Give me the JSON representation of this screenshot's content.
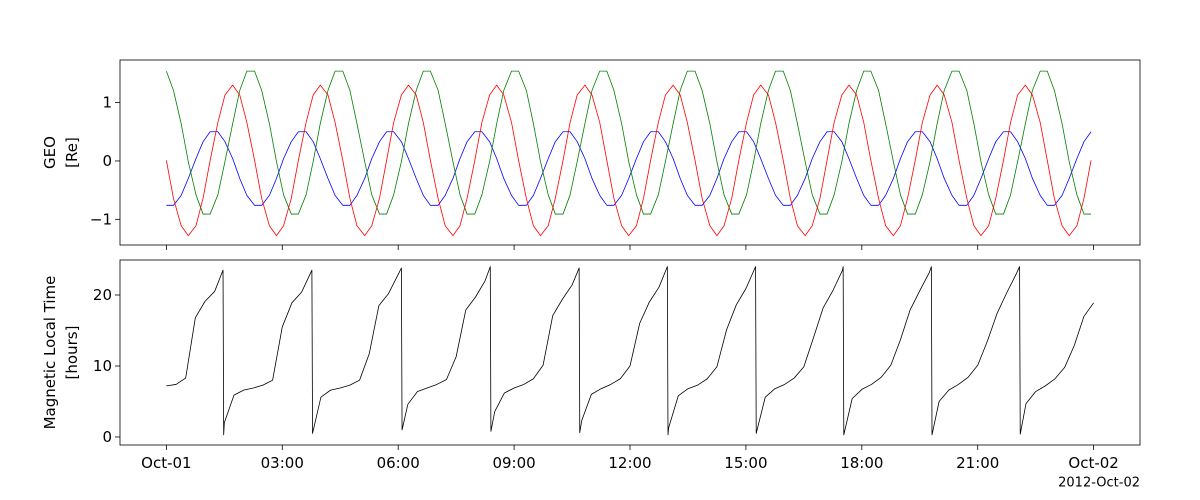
{
  "chart_data": [
    {
      "type": "line",
      "ylabel": [
        "GEO",
        "[Re]"
      ],
      "x": [
        "2012-10-01T00:00",
        "2012-10-01T00:11",
        "2012-10-01T00:23",
        "2012-10-01T00:34",
        "2012-10-01T00:46",
        "2012-10-01T00:57",
        "2012-10-01T01:08",
        "2012-10-01T01:20",
        "2012-10-01T01:31",
        "2012-10-01T01:43",
        "2012-10-01T01:54",
        "2012-10-01T02:05",
        "2012-10-01T02:17",
        "2012-10-01T02:28",
        "2012-10-01T02:40",
        "2012-10-01T02:51",
        "2012-10-01T03:02",
        "2012-10-01T03:14",
        "2012-10-01T03:25",
        "2012-10-01T03:37",
        "2012-10-01T03:48",
        "2012-10-01T03:59",
        "2012-10-01T04:11",
        "2012-10-01T04:22",
        "2012-10-01T04:34",
        "2012-10-01T04:45",
        "2012-10-01T04:56",
        "2012-10-01T05:08",
        "2012-10-01T05:19",
        "2012-10-01T05:31",
        "2012-10-01T05:42",
        "2012-10-01T05:53",
        "2012-10-01T06:05",
        "2012-10-01T06:16",
        "2012-10-01T06:28",
        "2012-10-01T06:39",
        "2012-10-01T06:50",
        "2012-10-01T07:02",
        "2012-10-01T07:13",
        "2012-10-01T07:25",
        "2012-10-01T07:36",
        "2012-10-01T07:47",
        "2012-10-01T07:59",
        "2012-10-01T08:10",
        "2012-10-01T08:22",
        "2012-10-01T08:33",
        "2012-10-01T08:44",
        "2012-10-01T08:56",
        "2012-10-01T09:07",
        "2012-10-01T09:19",
        "2012-10-01T09:30",
        "2012-10-01T09:41",
        "2012-10-01T09:53",
        "2012-10-01T10:04",
        "2012-10-01T10:16",
        "2012-10-01T10:27",
        "2012-10-01T10:38",
        "2012-10-01T10:50",
        "2012-10-01T11:01",
        "2012-10-01T11:13",
        "2012-10-01T11:24",
        "2012-10-01T11:35",
        "2012-10-01T11:47",
        "2012-10-01T11:58",
        "2012-10-01T12:10",
        "2012-10-01T12:21",
        "2012-10-01T12:32",
        "2012-10-01T12:44",
        "2012-10-01T12:55",
        "2012-10-01T13:07",
        "2012-10-01T13:18",
        "2012-10-01T13:29",
        "2012-10-01T13:41",
        "2012-10-01T13:52",
        "2012-10-01T14:04",
        "2012-10-01T14:15",
        "2012-10-01T14:26",
        "2012-10-01T14:38",
        "2012-10-01T14:49",
        "2012-10-01T15:01",
        "2012-10-01T15:12",
        "2012-10-01T15:23",
        "2012-10-01T15:35",
        "2012-10-01T15:46",
        "2012-10-01T15:58",
        "2012-10-01T16:09",
        "2012-10-01T16:20",
        "2012-10-01T16:32",
        "2012-10-01T16:43",
        "2012-10-01T16:55",
        "2012-10-01T17:06",
        "2012-10-01T17:17",
        "2012-10-01T17:29",
        "2012-10-01T17:40",
        "2012-10-01T17:52",
        "2012-10-01T18:03",
        "2012-10-01T18:14",
        "2012-10-01T18:26",
        "2012-10-01T18:37",
        "2012-10-01T18:49",
        "2012-10-01T19:00",
        "2012-10-01T19:11",
        "2012-10-01T19:23",
        "2012-10-01T19:34",
        "2012-10-01T19:46",
        "2012-10-01T19:57",
        "2012-10-01T20:08",
        "2012-10-01T20:20",
        "2012-10-01T20:31",
        "2012-10-01T20:43",
        "2012-10-01T20:54",
        "2012-10-01T21:05",
        "2012-10-01T21:17",
        "2012-10-01T21:28",
        "2012-10-01T21:40",
        "2012-10-01T21:51",
        "2012-10-01T22:02",
        "2012-10-01T22:14",
        "2012-10-01T22:25",
        "2012-10-01T22:37",
        "2012-10-01T22:48",
        "2012-10-01T22:59",
        "2012-10-01T23:11",
        "2012-10-01T23:22",
        "2012-10-01T23:34",
        "2012-10-01T23:45",
        "2012-10-01T23:56"
      ],
      "series": [
        {
          "color": "#0000ff",
          "values": [
            -0.76,
            -0.76,
            -0.59,
            -0.3,
            0.04,
            0.33,
            0.5,
            0.5,
            0.33,
            0.04,
            -0.3,
            -0.59,
            -0.76,
            -0.76,
            -0.59,
            -0.3,
            0.04,
            0.33,
            0.5,
            0.5,
            0.33,
            0.04,
            -0.3,
            -0.59,
            -0.76,
            -0.76,
            -0.59,
            -0.3,
            0.04,
            0.33,
            0.5,
            0.5,
            0.33,
            0.04,
            -0.3,
            -0.59,
            -0.76,
            -0.76,
            -0.59,
            -0.3,
            0.04,
            0.33,
            0.5,
            0.5,
            0.33,
            0.04,
            -0.3,
            -0.59,
            -0.76,
            -0.76,
            -0.59,
            -0.3,
            0.04,
            0.33,
            0.5,
            0.5,
            0.33,
            0.04,
            -0.3,
            -0.59,
            -0.76,
            -0.76,
            -0.59,
            -0.3,
            0.04,
            0.33,
            0.5,
            0.5,
            0.33,
            0.04,
            -0.3,
            -0.59,
            -0.76,
            -0.76,
            -0.59,
            -0.3,
            0.04,
            0.33,
            0.5,
            0.5,
            0.33,
            0.04,
            -0.3,
            -0.59,
            -0.76,
            -0.76,
            -0.59,
            -0.3,
            0.04,
            0.33,
            0.5,
            0.5,
            0.33,
            0.04,
            -0.3,
            -0.59,
            -0.76,
            -0.76,
            -0.59,
            -0.3,
            0.04,
            0.33,
            0.5,
            0.5,
            0.33,
            0.04,
            -0.3,
            -0.59,
            -0.76,
            -0.76,
            -0.59,
            -0.3,
            0.04,
            0.33,
            0.5,
            0.5,
            0.33,
            0.04,
            -0.3,
            -0.59,
            -0.76,
            -0.76,
            -0.59,
            -0.3,
            0.04,
            0.33,
            0.5
          ]
        },
        {
          "color": "#008000",
          "values": [
            1.54,
            1.21,
            0.64,
            -0.01,
            -0.58,
            -0.91,
            -0.91,
            -0.58,
            -0.01,
            0.64,
            1.21,
            1.54,
            1.54,
            1.21,
            0.64,
            -0.01,
            -0.58,
            -0.91,
            -0.91,
            -0.58,
            -0.01,
            0.64,
            1.21,
            1.54,
            1.54,
            1.21,
            0.64,
            -0.01,
            -0.58,
            -0.91,
            -0.91,
            -0.58,
            -0.01,
            0.64,
            1.21,
            1.54,
            1.54,
            1.21,
            0.64,
            -0.01,
            -0.58,
            -0.91,
            -0.91,
            -0.58,
            -0.01,
            0.64,
            1.21,
            1.54,
            1.54,
            1.21,
            0.64,
            -0.01,
            -0.58,
            -0.91,
            -0.91,
            -0.58,
            -0.01,
            0.64,
            1.21,
            1.54,
            1.54,
            1.21,
            0.64,
            -0.01,
            -0.58,
            -0.91,
            -0.91,
            -0.58,
            -0.01,
            0.64,
            1.21,
            1.54,
            1.54,
            1.21,
            0.64,
            -0.01,
            -0.58,
            -0.91,
            -0.91,
            -0.58,
            -0.01,
            0.64,
            1.21,
            1.54,
            1.54,
            1.21,
            0.64,
            -0.01,
            -0.58,
            -0.91,
            -0.91,
            -0.58,
            -0.01,
            0.64,
            1.21,
            1.54,
            1.54,
            1.21,
            0.64,
            -0.01,
            -0.58,
            -0.91,
            -0.91,
            -0.58,
            -0.01,
            0.64,
            1.21,
            1.54,
            1.54,
            1.21,
            0.64,
            -0.01,
            -0.58,
            -0.91,
            -0.91,
            -0.58,
            -0.01,
            0.64,
            1.21,
            1.54,
            1.54,
            1.21,
            0.64,
            -0.01,
            -0.58,
            -0.91,
            -0.91
          ]
        },
        {
          "color": "#ff0000",
          "values": [
            0.01,
            -0.64,
            -1.11,
            -1.28,
            -1.11,
            -0.64,
            0.01,
            0.66,
            1.13,
            1.3,
            1.13,
            0.66,
            0.01,
            -0.64,
            -1.11,
            -1.28,
            -1.11,
            -0.64,
            0.01,
            0.66,
            1.13,
            1.3,
            1.13,
            0.66,
            0.01,
            -0.64,
            -1.11,
            -1.28,
            -1.11,
            -0.64,
            0.01,
            0.66,
            1.13,
            1.3,
            1.13,
            0.66,
            0.01,
            -0.64,
            -1.11,
            -1.28,
            -1.11,
            -0.64,
            0.01,
            0.66,
            1.13,
            1.3,
            1.13,
            0.66,
            0.01,
            -0.64,
            -1.11,
            -1.28,
            -1.11,
            -0.64,
            0.01,
            0.66,
            1.13,
            1.3,
            1.13,
            0.66,
            0.01,
            -0.64,
            -1.11,
            -1.28,
            -1.11,
            -0.64,
            0.01,
            0.66,
            1.13,
            1.3,
            1.13,
            0.66,
            0.01,
            -0.64,
            -1.11,
            -1.28,
            -1.11,
            -0.64,
            0.01,
            0.66,
            1.13,
            1.3,
            1.13,
            0.66,
            0.01,
            -0.64,
            -1.11,
            -1.28,
            -1.11,
            -0.64,
            0.01,
            0.66,
            1.13,
            1.3,
            1.13,
            0.66,
            0.01,
            -0.64,
            -1.11,
            -1.28,
            -1.11,
            -0.64,
            0.01,
            0.66,
            1.13,
            1.3,
            1.13,
            0.66,
            0.01,
            -0.64,
            -1.11,
            -1.28,
            -1.11,
            -0.64,
            0.01,
            0.66,
            1.13,
            1.3,
            1.13,
            0.66,
            0.01,
            -0.64,
            -1.11,
            -1.28,
            -1.11,
            -0.64,
            0.01
          ]
        }
      ],
      "xlim": [
        "2012-09-30T22:48",
        "2012-10-02T01:12"
      ],
      "xticks": [
        "2012-10-01T00:00",
        "2012-10-01T03:00",
        "2012-10-01T06:00",
        "2012-10-01T09:00",
        "2012-10-01T12:00",
        "2012-10-01T15:00",
        "2012-10-01T18:00",
        "2012-10-01T21:00",
        "2012-10-02T00:00"
      ],
      "ylim": [
        -1.44,
        1.73
      ],
      "yticks": [
        {
          "value": -1,
          "label": "−1"
        },
        0,
        1
      ],
      "grid": false
    },
    {
      "type": "line",
      "ylabel": [
        "Magnetic Local Time",
        "[hours]"
      ],
      "x": [
        "2012-10-01T00:00",
        "2012-10-01T00:15",
        "2012-10-01T00:30",
        "2012-10-01T00:45",
        "2012-10-01T01:00",
        "2012-10-01T01:15",
        "2012-10-01T01:28",
        "2012-10-01T01:29",
        "2012-10-01T01:30",
        "2012-10-01T01:45",
        "2012-10-01T02:00",
        "2012-10-01T02:15",
        "2012-10-01T02:30",
        "2012-10-01T02:45",
        "2012-10-01T03:00",
        "2012-10-01T03:15",
        "2012-10-01T03:30",
        "2012-10-01T03:45",
        "2012-10-01T03:46",
        "2012-10-01T03:47",
        "2012-10-01T04:00",
        "2012-10-01T04:15",
        "2012-10-01T04:30",
        "2012-10-01T04:45",
        "2012-10-01T05:00",
        "2012-10-01T05:15",
        "2012-10-01T05:30",
        "2012-10-01T05:45",
        "2012-10-01T06:00",
        "2012-10-01T06:05",
        "2012-10-01T06:06",
        "2012-10-01T06:15",
        "2012-10-01T06:30",
        "2012-10-01T06:45",
        "2012-10-01T07:00",
        "2012-10-01T07:15",
        "2012-10-01T07:30",
        "2012-10-01T07:45",
        "2012-10-01T08:00",
        "2012-10-01T08:15",
        "2012-10-01T08:23",
        "2012-10-01T08:24",
        "2012-10-01T08:30",
        "2012-10-01T08:45",
        "2012-10-01T09:00",
        "2012-10-01T09:15",
        "2012-10-01T09:30",
        "2012-10-01T09:45",
        "2012-10-01T10:00",
        "2012-10-01T10:15",
        "2012-10-01T10:30",
        "2012-10-01T10:41",
        "2012-10-01T10:42",
        "2012-10-01T10:45",
        "2012-10-01T11:00",
        "2012-10-01T11:15",
        "2012-10-01T11:30",
        "2012-10-01T11:45",
        "2012-10-01T12:00",
        "2012-10-01T12:15",
        "2012-10-01T12:30",
        "2012-10-01T12:45",
        "2012-10-01T12:58",
        "2012-10-01T12:59",
        "2012-10-01T13:00",
        "2012-10-01T13:15",
        "2012-10-01T13:30",
        "2012-10-01T13:45",
        "2012-10-01T14:00",
        "2012-10-01T14:15",
        "2012-10-01T14:30",
        "2012-10-01T14:45",
        "2012-10-01T15:00",
        "2012-10-01T15:15",
        "2012-10-01T15:16",
        "2012-10-01T15:30",
        "2012-10-01T15:45",
        "2012-10-01T16:00",
        "2012-10-01T16:15",
        "2012-10-01T16:30",
        "2012-10-01T16:45",
        "2012-10-01T17:00",
        "2012-10-01T17:15",
        "2012-10-01T17:30",
        "2012-10-01T17:31",
        "2012-10-01T17:32",
        "2012-10-01T17:45",
        "2012-10-01T18:00",
        "2012-10-01T18:15",
        "2012-10-01T18:30",
        "2012-10-01T18:45",
        "2012-10-01T19:00",
        "2012-10-01T19:15",
        "2012-10-01T19:30",
        "2012-10-01T19:45",
        "2012-10-01T19:48",
        "2012-10-01T19:49",
        "2012-10-01T20:00",
        "2012-10-01T20:15",
        "2012-10-01T20:30",
        "2012-10-01T20:45",
        "2012-10-01T21:00",
        "2012-10-01T21:15",
        "2012-10-01T21:30",
        "2012-10-01T21:45",
        "2012-10-01T22:00",
        "2012-10-01T22:05",
        "2012-10-01T22:06",
        "2012-10-01T22:15",
        "2012-10-01T22:30",
        "2012-10-01T22:45",
        "2012-10-01T23:00",
        "2012-10-01T23:15",
        "2012-10-01T23:30",
        "2012-10-01T23:45",
        "2012-10-02T00:00"
      ],
      "series": [
        {
          "color": "#000000",
          "values": [
            7.2,
            7.4,
            8.3,
            16.8,
            19.1,
            20.5,
            23.5,
            0.3,
            2.0,
            5.9,
            6.6,
            6.9,
            7.3,
            8.0,
            15.5,
            18.9,
            20.4,
            23.3,
            23.5,
            0.5,
            5.6,
            6.6,
            6.9,
            7.3,
            8.0,
            11.7,
            18.5,
            20.2,
            22.9,
            23.8,
            1.0,
            4.6,
            6.4,
            6.9,
            7.4,
            8.1,
            11.3,
            17.9,
            19.7,
            22.0,
            24.0,
            0.8,
            3.6,
            6.2,
            6.9,
            7.4,
            8.2,
            10.1,
            17.1,
            19.4,
            21.4,
            23.8,
            0.6,
            2.3,
            6.0,
            6.8,
            7.4,
            8.2,
            10.0,
            16.0,
            19.0,
            21.1,
            24.0,
            0.3,
            1.3,
            5.8,
            6.8,
            7.3,
            8.2,
            9.9,
            15.1,
            18.6,
            20.9,
            24.0,
            0.5,
            5.6,
            6.8,
            7.4,
            8.3,
            9.9,
            14.0,
            18.2,
            20.6,
            23.5,
            24.0,
            0.3,
            5.4,
            6.7,
            7.4,
            8.4,
            10.1,
            13.7,
            17.9,
            20.6,
            23.2,
            24.0,
            0.3,
            5.0,
            6.6,
            7.4,
            8.4,
            10.1,
            13.5,
            17.4,
            20.3,
            23.0,
            24.0,
            0.4,
            4.7,
            6.4,
            7.2,
            8.2,
            9.8,
            12.9,
            17.0,
            18.9
          ]
        }
      ],
      "xlim": [
        "2012-09-30T22:48",
        "2012-10-02T01:12"
      ],
      "xticks": [
        {
          "value": "2012-10-01T00:00",
          "label": "Oct-01"
        },
        {
          "value": "2012-10-01T03:00",
          "label": "03:00"
        },
        {
          "value": "2012-10-01T06:00",
          "label": "06:00"
        },
        {
          "value": "2012-10-01T09:00",
          "label": "09:00"
        },
        {
          "value": "2012-10-01T12:00",
          "label": "12:00"
        },
        {
          "value": "2012-10-01T15:00",
          "label": "15:00"
        },
        {
          "value": "2012-10-01T18:00",
          "label": "18:00"
        },
        {
          "value": "2012-10-01T21:00",
          "label": "21:00"
        },
        {
          "value": "2012-10-02T00:00",
          "label": "Oct-02"
        }
      ],
      "x_offset_label": "2012-Oct-02",
      "ylim": [
        -1.13,
        24.93
      ],
      "yticks": [
        0,
        10,
        20
      ],
      "grid": false
    }
  ]
}
